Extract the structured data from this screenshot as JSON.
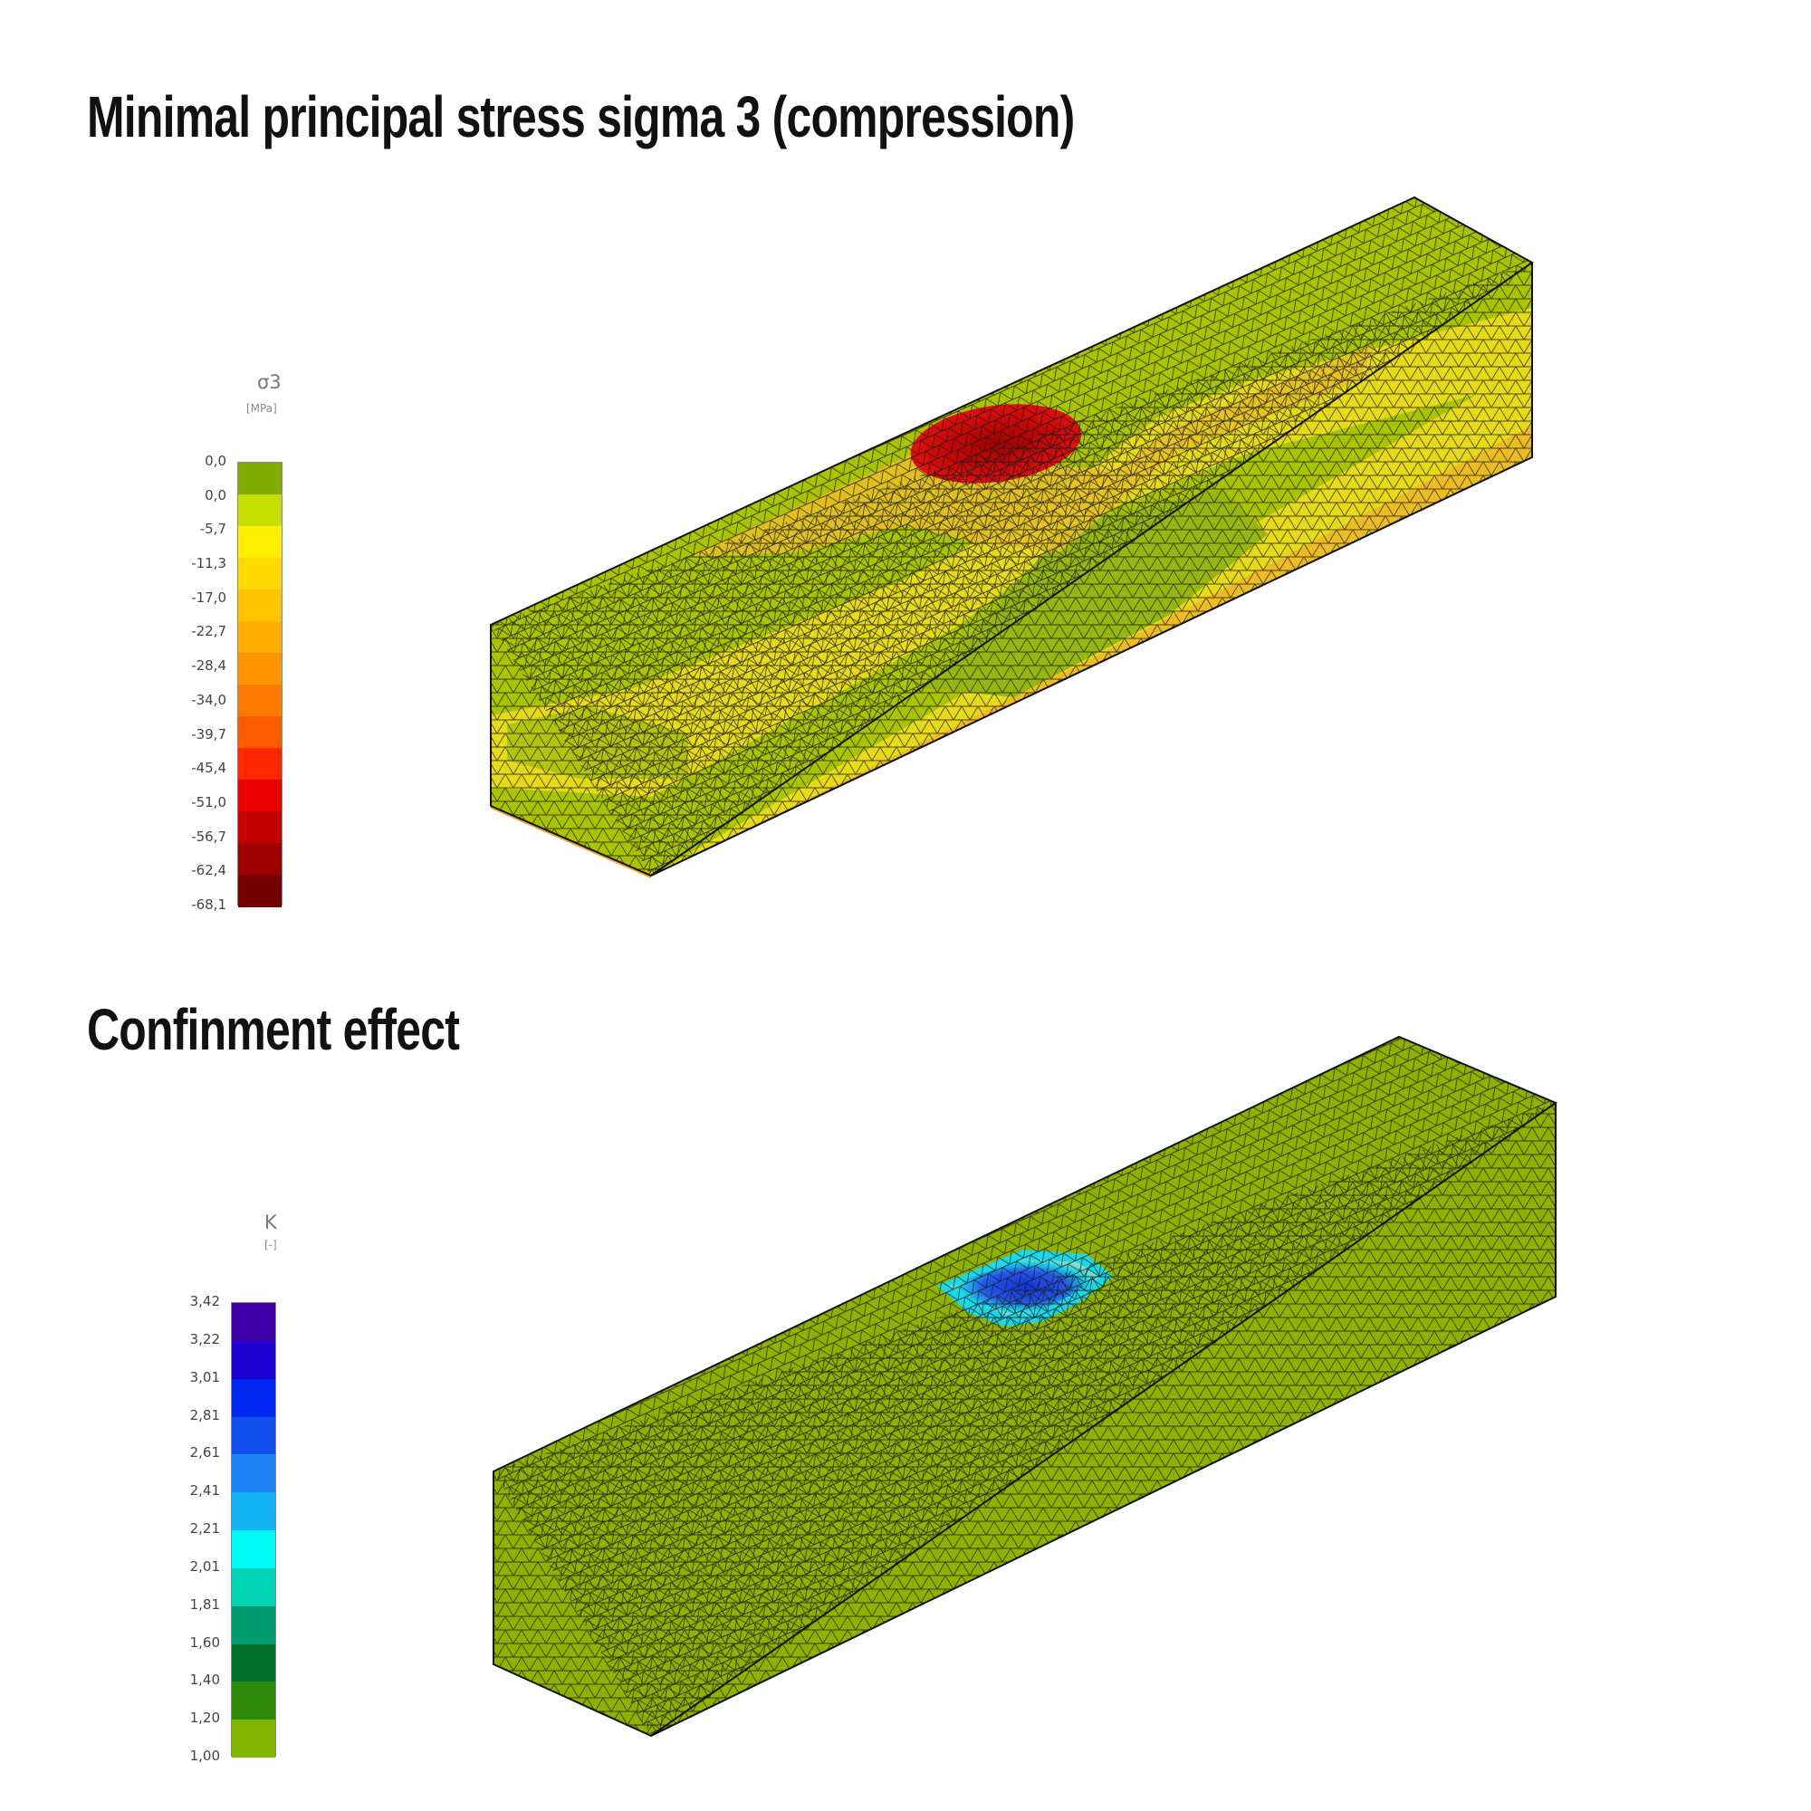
{
  "panels": [
    {
      "title": "Minimal principal stress sigma 3 (compression)",
      "legend": {
        "symbol": "σ3",
        "unit": "[MPa]",
        "ticks": [
          "0,0",
          "0,0",
          "-5,7",
          "-11,3",
          "-17,0",
          "-22,7",
          "-28,4",
          "-34,0",
          "-39,7",
          "-45,4",
          "-51,0",
          "-56,7",
          "-62,4",
          "-68,1"
        ],
        "colors": [
          "#82ad00",
          "#c6df00",
          "#fff000",
          "#ffd900",
          "#ffc400",
          "#ffae00",
          "#ff9400",
          "#ff7a00",
          "#ff5a00",
          "#ff2600",
          "#ea0000",
          "#c40000",
          "#9c0000",
          "#740000"
        ]
      },
      "contour_colors": {
        "base": "#a9c400",
        "band": "#e7db18",
        "orange": "#f0a62a",
        "red": "#c80707",
        "dark_red": "#a10000",
        "green_zone": "#97b60f"
      }
    },
    {
      "title": "Confinment effect",
      "legend": {
        "symbol": "K",
        "unit": "[-]",
        "ticks": [
          "3,42",
          "3,22",
          "3,01",
          "2,81",
          "2,61",
          "2,41",
          "2,21",
          "2,01",
          "1,81",
          "1,60",
          "1,40",
          "1,20",
          "1,00"
        ],
        "colors": [
          "#4000a8",
          "#2000d0",
          "#0028f0",
          "#1450f0",
          "#1e82f5",
          "#14b4f5",
          "#00fafa",
          "#00d2b4",
          "#009a6e",
          "#006e28",
          "#2f8a0a",
          "#82b400"
        ]
      },
      "contour_colors": {
        "base": "#8fb100",
        "cyan": "#19d8e8",
        "blue": "#1433d6"
      }
    }
  ]
}
